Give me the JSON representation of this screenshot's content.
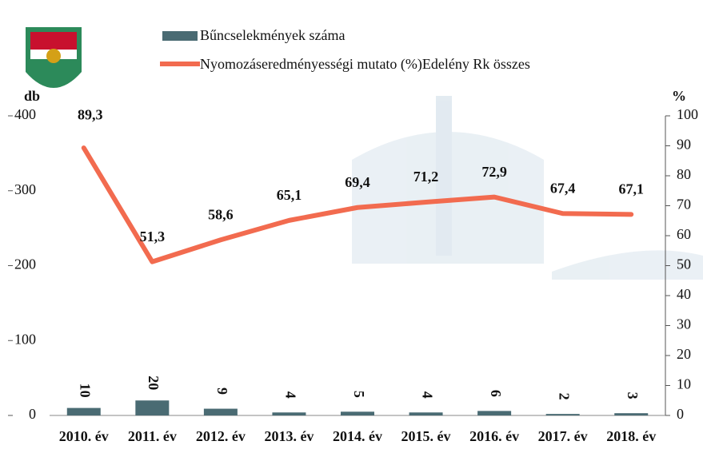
{
  "chart_data": {
    "type": "bar-line",
    "categories": [
      "2010. év",
      "2011. év",
      "2012. év",
      "2013. év",
      "2014. év",
      "2015. év",
      "2016. év",
      "2017. év",
      "2018. év"
    ],
    "series": [
      {
        "name": "Bűncselekmények száma",
        "type": "bar",
        "color": "#4a6b73",
        "values": [
          10,
          20,
          9,
          4,
          5,
          4,
          6,
          2,
          3
        ]
      },
      {
        "name": "Nyomozáseredményességi mutato (%)Edelény Rk összes",
        "type": "line",
        "axis": "y2",
        "color": "#f26b4f",
        "values": [
          89.3,
          51.3,
          58.6,
          65.1,
          69.4,
          71.2,
          72.9,
          67.4,
          67.1
        ],
        "value_labels": [
          "89,3",
          "51,3",
          "58,6",
          "65,1",
          "69,4",
          "71,2",
          "72,9",
          "67,4",
          "67,1"
        ]
      }
    ],
    "y_label": "db",
    "y2_label": "%",
    "ylim": [
      0,
      400
    ],
    "yticks": [
      0,
      100,
      200,
      300,
      400
    ],
    "y2lim": [
      0,
      100
    ],
    "y2ticks": [
      0,
      10,
      20,
      30,
      40,
      50,
      60,
      70,
      80,
      90,
      100
    ]
  }
}
